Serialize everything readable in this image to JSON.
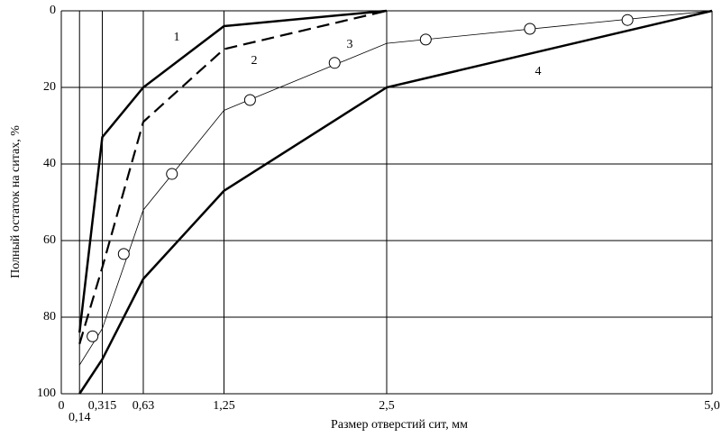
{
  "chart_data": {
    "type": "line",
    "xlabel": "Размер отверстий сит, мм",
    "ylabel": "Полный остаток на ситах, %",
    "xlim": [
      0,
      5.0
    ],
    "xticks": [
      0,
      {
        "value": 0.14,
        "label": "0,14"
      },
      {
        "value": 0.315,
        "label": "0,315"
      },
      {
        "value": 0.63,
        "label": "0,63"
      },
      {
        "value": 1.25,
        "label": "1,25"
      },
      {
        "value": 2.5,
        "label": "2,5"
      },
      {
        "value": 5.0,
        "label": "5,0"
      }
    ],
    "ylim": [
      100,
      0
    ],
    "yticks": [
      0,
      20,
      40,
      60,
      80,
      100
    ],
    "grid": true,
    "series": [
      {
        "name": "1",
        "color": "#000000",
        "x": [
          0.14,
          0.315,
          0.63,
          1.25,
          2.5
        ],
        "values": [
          84,
          33,
          20,
          4,
          0
        ]
      },
      {
        "name": "2",
        "color": "#000000",
        "style": "dashed",
        "x": [
          0.14,
          0.315,
          0.63,
          1.25,
          2.5
        ],
        "values": [
          87,
          67,
          29,
          10,
          0
        ]
      },
      {
        "name": "3",
        "color": "#000000",
        "x": [
          0.14,
          0.315,
          0.63,
          1.25,
          2.5,
          5.0
        ],
        "values": [
          92.5,
          83,
          52,
          26,
          8.5,
          0
        ],
        "markers": {
          "x": [
            0.24,
            0.48,
            0.85,
            1.45,
            2.1,
            2.8,
            3.6,
            4.35
          ],
          "values": [
            85,
            63.5,
            42.6,
            23.3,
            13.6,
            7.5,
            4.7,
            2.4
          ]
        }
      },
      {
        "name": "4",
        "color": "#000000",
        "x": [
          0.14,
          0.315,
          0.63,
          1.25,
          2.5,
          5.0
        ],
        "values": [
          100,
          91,
          70,
          47,
          20,
          0
        ]
      }
    ]
  }
}
